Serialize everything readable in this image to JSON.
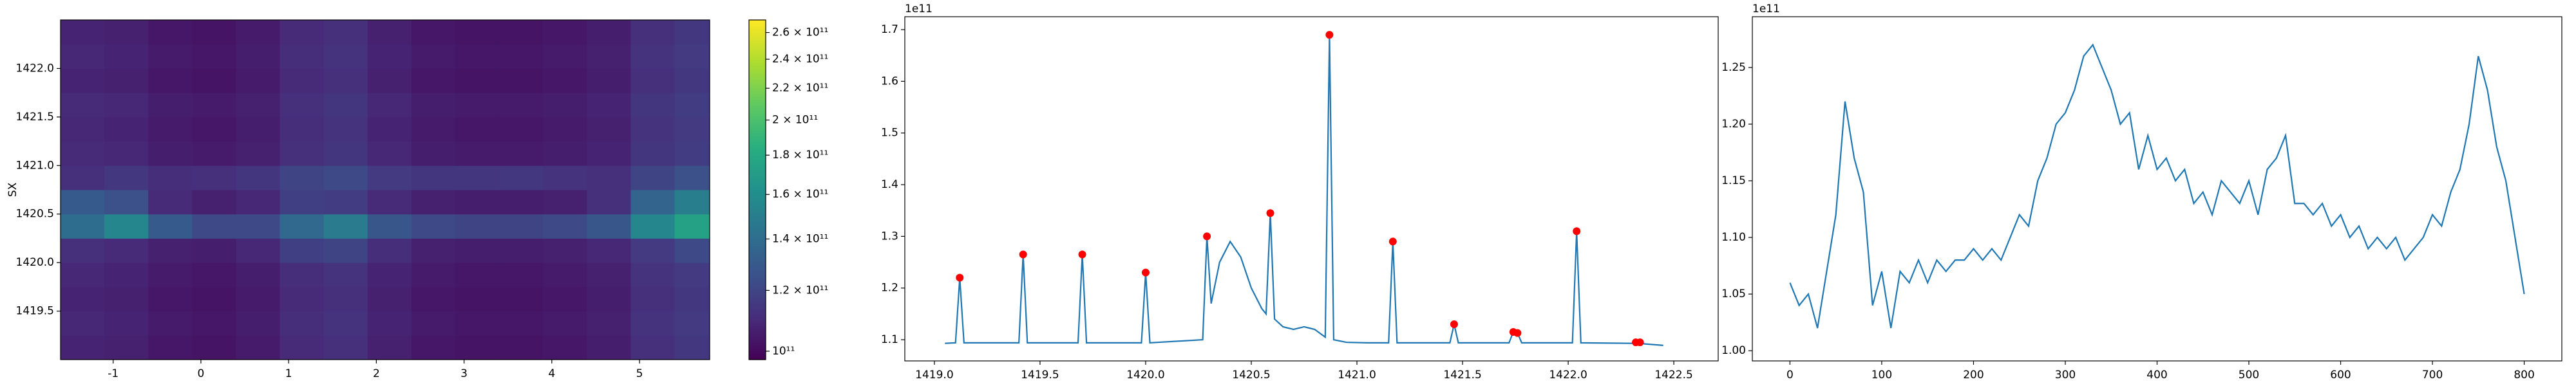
{
  "chart_data": [
    {
      "type": "heatmap",
      "ylabel": "SX",
      "xlim": [
        -1.6,
        5.8
      ],
      "xticks": [
        -1,
        0,
        1,
        2,
        3,
        4,
        5
      ],
      "ylim": [
        1419.0,
        1422.5
      ],
      "yticks": [
        1419.5,
        {
          "value": 1420.0,
          "label": "1420.0"
        },
        1420.5,
        {
          "value": 1421.0,
          "label": "1421.0"
        },
        1421.5,
        {
          "value": 1422.0,
          "label": "1422.0"
        }
      ],
      "x_edges": [
        -1.6,
        -1.1,
        -0.6,
        -0.1,
        0.4,
        0.9,
        1.4,
        1.9,
        2.4,
        2.9,
        3.4,
        3.9,
        4.4,
        4.9,
        5.4,
        5.8
      ],
      "y_edges": [
        1419.0,
        1419.25,
        1419.5,
        1419.75,
        1420.0,
        1420.25,
        1420.5,
        1420.75,
        1421.0,
        1421.25,
        1421.5,
        1421.75,
        1422.0,
        1422.25,
        1422.5
      ],
      "z": [
        [
          108000000000.0,
          107000000000.0,
          104000000000.0,
          103000000000.0,
          105000000000.0,
          110000000000.0,
          112000000000.0,
          107000000000.0,
          104000000000.0,
          103000000000.0,
          103000000000.0,
          104000000000.0,
          106000000000.0,
          112000000000.0,
          115000000000.0
        ],
        [
          109000000000.0,
          108000000000.0,
          105000000000.0,
          104000000000.0,
          106000000000.0,
          111000000000.0,
          113000000000.0,
          108000000000.0,
          105000000000.0,
          104000000000.0,
          104000000000.0,
          105000000000.0,
          107000000000.0,
          113000000000.0,
          116000000000.0
        ],
        [
          108000000000.0,
          107000000000.0,
          104000000000.0,
          103000000000.0,
          105000000000.0,
          110000000000.0,
          112000000000.0,
          107000000000.0,
          104000000000.0,
          103000000000.0,
          103000000000.0,
          104000000000.0,
          106000000000.0,
          112000000000.0,
          115000000000.0
        ],
        [
          109000000000.0,
          108000000000.0,
          105000000000.0,
          104000000000.0,
          106000000000.0,
          111000000000.0,
          113000000000.0,
          108000000000.0,
          105000000000.0,
          104000000000.0,
          104000000000.0,
          105000000000.0,
          107000000000.0,
          113000000000.0,
          116000000000.0
        ],
        [
          112000000000.0,
          110000000000.0,
          107000000000.0,
          106000000000.0,
          109000000000.0,
          118000000000.0,
          120000000000.0,
          111000000000.0,
          107000000000.0,
          106000000000.0,
          106000000000.0,
          107000000000.0,
          109000000000.0,
          116000000000.0,
          122000000000.0
        ],
        [
          140000000000.0,
          155000000000.0,
          130000000000.0,
          122000000000.0,
          122000000000.0,
          138000000000.0,
          148000000000.0,
          128000000000.0,
          122000000000.0,
          120000000000.0,
          120000000000.0,
          122000000000.0,
          128000000000.0,
          155000000000.0,
          175000000000.0
        ],
        [
          130000000000.0,
          125000000000.0,
          110000000000.0,
          107000000000.0,
          109000000000.0,
          118000000000.0,
          117000000000.0,
          110000000000.0,
          107000000000.0,
          106000000000.0,
          106000000000.0,
          107000000000.0,
          112000000000.0,
          135000000000.0,
          150000000000.0
        ],
        [
          112000000000.0,
          115000000000.0,
          111000000000.0,
          112000000000.0,
          114000000000.0,
          120000000000.0,
          122000000000.0,
          116000000000.0,
          114000000000.0,
          114000000000.0,
          115000000000.0,
          113000000000.0,
          112000000000.0,
          120000000000.0,
          125000000000.0
        ],
        [
          110000000000.0,
          109000000000.0,
          106000000000.0,
          105000000000.0,
          107000000000.0,
          112000000000.0,
          114000000000.0,
          109000000000.0,
          106000000000.0,
          105000000000.0,
          105000000000.0,
          106000000000.0,
          108000000000.0,
          114000000000.0,
          117000000000.0
        ],
        [
          109000000000.0,
          108000000000.0,
          105000000000.0,
          104000000000.0,
          106000000000.0,
          111000000000.0,
          113000000000.0,
          108000000000.0,
          105000000000.0,
          104000000000.0,
          104000000000.0,
          105000000000.0,
          107000000000.0,
          113000000000.0,
          116000000000.0
        ],
        [
          110000000000.0,
          109000000000.0,
          106000000000.0,
          105000000000.0,
          107000000000.0,
          112000000000.0,
          114000000000.0,
          109000000000.0,
          106000000000.0,
          105000000000.0,
          105000000000.0,
          106000000000.0,
          108000000000.0,
          114000000000.0,
          117000000000.0
        ],
        [
          108000000000.0,
          107000000000.0,
          104000000000.0,
          103000000000.0,
          105000000000.0,
          110000000000.0,
          112000000000.0,
          107000000000.0,
          104000000000.0,
          103000000000.0,
          103000000000.0,
          104000000000.0,
          106000000000.0,
          112000000000.0,
          115000000000.0
        ],
        [
          109000000000.0,
          108000000000.0,
          105000000000.0,
          104000000000.0,
          106000000000.0,
          111000000000.0,
          113000000000.0,
          108000000000.0,
          105000000000.0,
          104000000000.0,
          104000000000.0,
          105000000000.0,
          107000000000.0,
          113000000000.0,
          116000000000.0
        ],
        [
          108000000000.0,
          107000000000.0,
          104000000000.0,
          103000000000.0,
          105000000000.0,
          110000000000.0,
          112000000000.0,
          107000000000.0,
          104000000000.0,
          103000000000.0,
          103000000000.0,
          104000000000.0,
          106000000000.0,
          112000000000.0,
          115000000000.0
        ]
      ],
      "colormap": "viridis",
      "clim": [
        97500000000.0,
        270000000000.0
      ],
      "clog": true,
      "cticks": [
        {
          "value": 100000000000.0,
          "label": "10¹¹"
        },
        {
          "value": 120000000000.0,
          "label": "1.2 × 10¹¹"
        },
        {
          "value": 140000000000.0,
          "label": "1.4 × 10¹¹"
        },
        {
          "value": 160000000000.0,
          "label": "1.6 × 10¹¹"
        },
        {
          "value": 180000000000.0,
          "label": "1.8 × 10¹¹"
        },
        {
          "value": 200000000000.0,
          "label": "2 × 10¹¹"
        },
        {
          "value": 220000000000.0,
          "label": "2.2 × 10¹¹"
        },
        {
          "value": 240000000000.0,
          "label": "2.4 × 10¹¹"
        },
        {
          "value": 260000000000.0,
          "label": "2.6 × 10¹¹"
        }
      ]
    },
    {
      "type": "line",
      "offset_text": "1e11",
      "xlim": [
        1418.86,
        1422.71
      ],
      "xticks": [
        {
          "value": 1419.0,
          "label": "1419.0"
        },
        1419.5,
        {
          "value": 1420.0,
          "label": "1420.0"
        },
        1420.5,
        {
          "value": 1421.0,
          "label": "1421.0"
        },
        1421.5,
        {
          "value": 1422.0,
          "label": "1422.0"
        },
        1422.5
      ],
      "ylim": [
        1.059,
        1.725
      ],
      "yticks": [
        1.1,
        1.2,
        1.3,
        1.4,
        1.5,
        1.6,
        1.7
      ],
      "series": [
        {
          "kind": "line",
          "color": "#1f77b4",
          "x": [
            1419.05,
            1419.1,
            1419.12,
            1419.14,
            1419.4,
            1419.42,
            1419.44,
            1419.68,
            1419.7,
            1419.72,
            1419.98,
            1420.0,
            1420.02,
            1420.27,
            1420.29,
            1420.31,
            1420.35,
            1420.4,
            1420.45,
            1420.5,
            1420.55,
            1420.57,
            1420.59,
            1420.61,
            1420.65,
            1420.7,
            1420.75,
            1420.8,
            1420.85,
            1420.87,
            1420.89,
            1420.95,
            1421.05,
            1421.15,
            1421.17,
            1421.19,
            1421.44,
            1421.46,
            1421.48,
            1421.72,
            1421.74,
            1421.76,
            1421.78,
            1422.02,
            1422.04,
            1422.06,
            1422.3,
            1422.32,
            1422.34,
            1422.36,
            1422.45
          ],
          "values": [
            1.093,
            1.094,
            1.22,
            1.094,
            1.094,
            1.265,
            1.094,
            1.094,
            1.265,
            1.094,
            1.094,
            1.23,
            1.094,
            1.1,
            1.3,
            1.17,
            1.25,
            1.29,
            1.26,
            1.2,
            1.16,
            1.15,
            1.345,
            1.14,
            1.125,
            1.12,
            1.125,
            1.12,
            1.105,
            1.69,
            1.1,
            1.095,
            1.094,
            1.094,
            1.29,
            1.094,
            1.094,
            1.13,
            1.094,
            1.094,
            1.115,
            1.113,
            1.094,
            1.094,
            1.31,
            1.094,
            1.093,
            1.095,
            1.095,
            1.092,
            1.089
          ]
        },
        {
          "kind": "scatter",
          "color": "#ff0000",
          "x": [
            1419.12,
            1419.42,
            1419.7,
            1420.0,
            1420.29,
            1420.59,
            1420.87,
            1421.17,
            1421.46,
            1421.74,
            1421.76,
            1422.04,
            1422.32,
            1422.34
          ],
          "values": [
            1.22,
            1.265,
            1.265,
            1.23,
            1.3,
            1.345,
            1.69,
            1.29,
            1.13,
            1.115,
            1.113,
            1.31,
            1.095,
            1.095
          ]
        }
      ]
    },
    {
      "type": "line",
      "offset_text": "1e11",
      "xlim": [
        -41,
        841
      ],
      "xticks": [
        0,
        100,
        200,
        300,
        400,
        500,
        600,
        700,
        800
      ],
      "ylim": [
        0.991,
        1.2948
      ],
      "yticks": [
        {
          "value": 1.0,
          "label": "1.00"
        },
        1.05,
        {
          "value": 1.1,
          "label": "1.10"
        },
        1.15,
        {
          "value": 1.2,
          "label": "1.20"
        },
        1.25
      ],
      "series": [
        {
          "kind": "line",
          "color": "#1f77b4",
          "x": [
            0,
            10,
            20,
            30,
            40,
            50,
            60,
            70,
            80,
            90,
            100,
            110,
            120,
            130,
            140,
            150,
            160,
            170,
            180,
            190,
            200,
            210,
            220,
            230,
            240,
            250,
            260,
            270,
            280,
            290,
            300,
            310,
            320,
            330,
            340,
            350,
            360,
            370,
            380,
            390,
            400,
            410,
            420,
            430,
            440,
            450,
            460,
            470,
            480,
            490,
            500,
            510,
            520,
            530,
            540,
            550,
            560,
            570,
            580,
            590,
            600,
            610,
            620,
            630,
            640,
            650,
            660,
            670,
            680,
            690,
            700,
            710,
            720,
            730,
            740,
            750,
            760,
            770,
            780,
            790,
            800
          ],
          "values": [
            1.06,
            1.04,
            1.05,
            1.02,
            1.07,
            1.12,
            1.22,
            1.17,
            1.14,
            1.04,
            1.07,
            1.02,
            1.07,
            1.06,
            1.08,
            1.06,
            1.08,
            1.07,
            1.08,
            1.08,
            1.09,
            1.08,
            1.09,
            1.08,
            1.1,
            1.12,
            1.11,
            1.15,
            1.17,
            1.2,
            1.21,
            1.23,
            1.26,
            1.27,
            1.25,
            1.23,
            1.2,
            1.21,
            1.16,
            1.19,
            1.16,
            1.17,
            1.15,
            1.16,
            1.13,
            1.14,
            1.12,
            1.15,
            1.14,
            1.13,
            1.15,
            1.12,
            1.16,
            1.17,
            1.19,
            1.13,
            1.13,
            1.12,
            1.13,
            1.11,
            1.12,
            1.1,
            1.11,
            1.09,
            1.1,
            1.09,
            1.1,
            1.08,
            1.09,
            1.1,
            1.12,
            1.11,
            1.14,
            1.16,
            1.2,
            1.26,
            1.23,
            1.18,
            1.15,
            1.1,
            1.05
          ]
        }
      ]
    }
  ]
}
